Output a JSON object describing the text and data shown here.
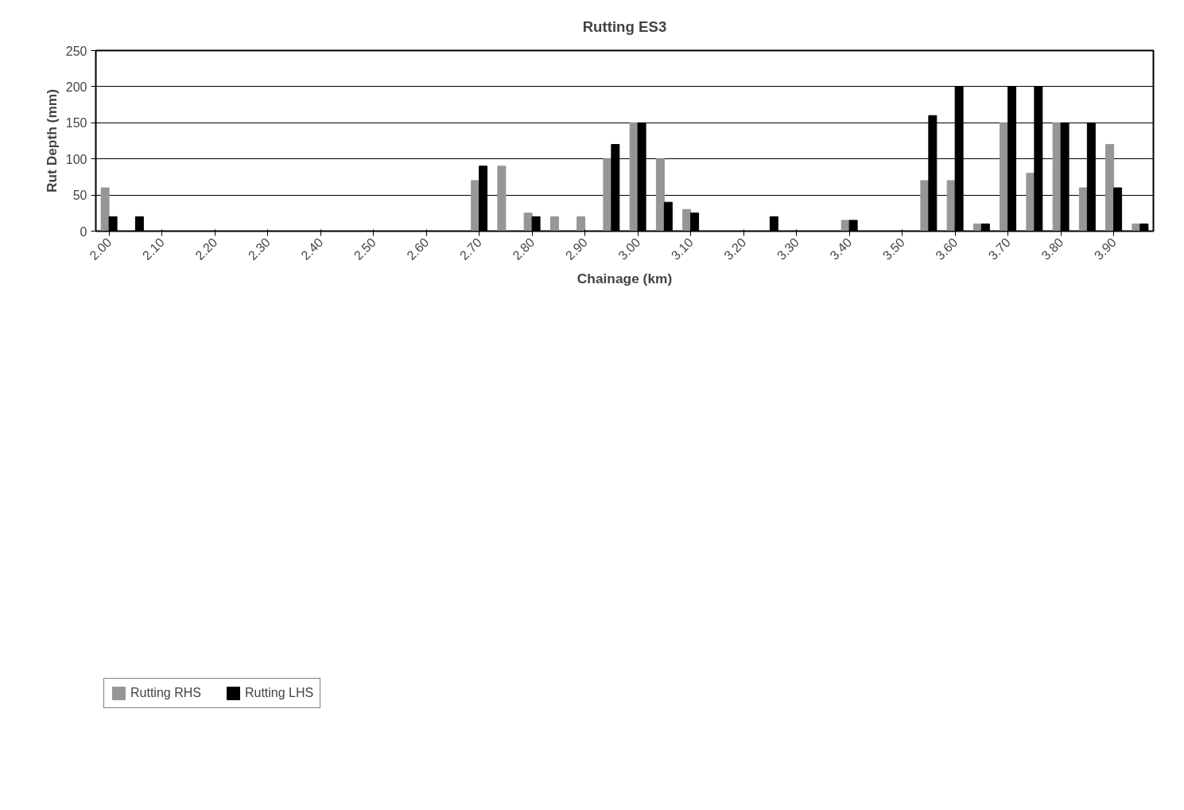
{
  "chart_data": {
    "type": "bar",
    "title": "Rutting ES3",
    "xlabel": "Chainage (km)",
    "ylabel": "Rut Depth (mm)",
    "categories": [
      "2.00",
      null,
      "2.10",
      null,
      "2.20",
      null,
      "2.30",
      null,
      "2.40",
      null,
      "2.50",
      null,
      "2.60",
      null,
      "2.70",
      null,
      "2.80",
      null,
      "2.90",
      null,
      "3.00",
      null,
      "3.10",
      null,
      "3.20",
      null,
      "3.30",
      null,
      "3.40",
      null,
      "3.50",
      null,
      "3.60",
      null,
      "3.70",
      null,
      "3.80",
      null,
      "3.90",
      null
    ],
    "series": [
      {
        "name": "Rutting RHS",
        "color": "#969696",
        "values": [
          60,
          0,
          0,
          0,
          0,
          0,
          0,
          0,
          0,
          0,
          0,
          0,
          0,
          0,
          70,
          90,
          25,
          20,
          20,
          100,
          150,
          100,
          30,
          0,
          0,
          0,
          0,
          0,
          15,
          0,
          0,
          70,
          70,
          10,
          150,
          80,
          150,
          60,
          120,
          10
        ]
      },
      {
        "name": "Rutting LHS",
        "color": "#000000",
        "values": [
          20,
          20,
          0,
          0,
          0,
          0,
          0,
          0,
          0,
          0,
          0,
          0,
          0,
          0,
          90,
          0,
          20,
          0,
          0,
          120,
          150,
          40,
          25,
          0,
          0,
          20,
          0,
          0,
          15,
          0,
          0,
          160,
          200,
          10,
          200,
          200,
          150,
          150,
          60,
          10
        ]
      }
    ],
    "ylim": [
      0,
      250
    ],
    "yticks": [
      0,
      50,
      100,
      150,
      200,
      250
    ],
    "grid": "y",
    "legend": "bottom left"
  }
}
